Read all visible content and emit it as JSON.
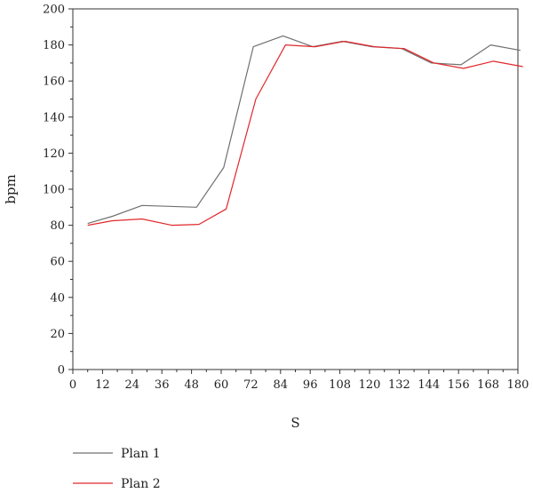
{
  "chart_data": {
    "type": "line",
    "title": "",
    "xlabel": "S",
    "ylabel": "bpm",
    "xlim": [
      0,
      180
    ],
    "ylim": [
      0,
      200
    ],
    "xticks": [
      0,
      12,
      24,
      36,
      48,
      60,
      72,
      84,
      96,
      108,
      120,
      132,
      144,
      156,
      168,
      180
    ],
    "yticks": [
      0,
      20,
      40,
      60,
      80,
      100,
      120,
      140,
      160,
      180,
      200
    ],
    "grid": false,
    "legend_position": "bottom-left",
    "series": [
      {
        "name": "Plan 1",
        "color": "#707070",
        "x": [
          6,
          16,
          28,
          50,
          61,
          73,
          85,
          97,
          109,
          121,
          133,
          145,
          157,
          169,
          181
        ],
        "y": [
          81,
          85,
          91,
          90,
          112,
          179,
          185,
          179,
          182,
          179,
          178,
          170,
          169,
          180,
          177
        ]
      },
      {
        "name": "Plan 2",
        "color": "#e0282c",
        "x": [
          6,
          16,
          28,
          40,
          51,
          62,
          74,
          86,
          98,
          110,
          122,
          134,
          146,
          158,
          170,
          182
        ],
        "y": [
          80,
          82.5,
          83.5,
          80,
          80.5,
          89,
          150,
          180,
          179,
          182,
          179,
          178,
          170,
          167,
          171,
          168
        ]
      }
    ]
  }
}
